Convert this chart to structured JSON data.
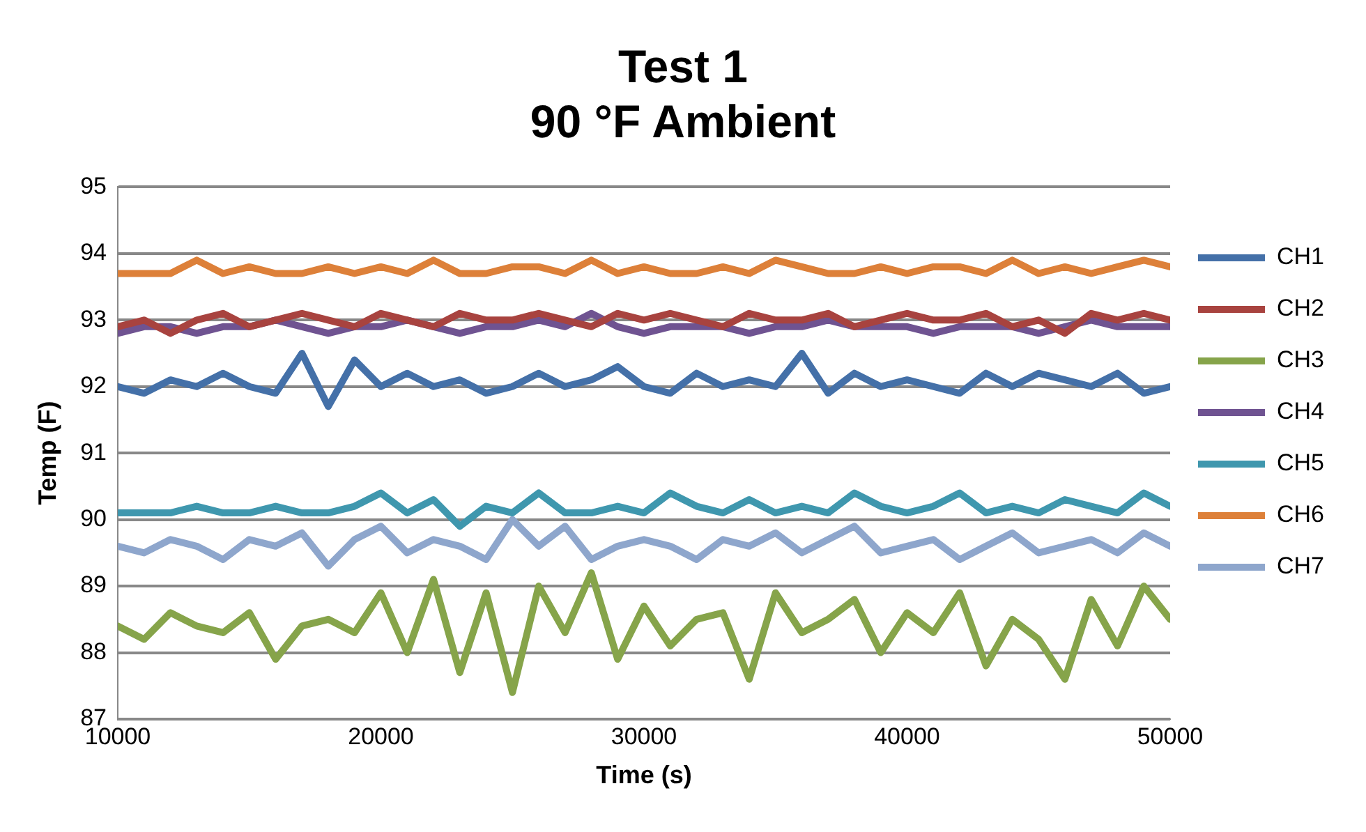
{
  "chart_data": {
    "type": "line",
    "title": "Test 1\n90 °F Ambient",
    "xlabel": "Time (s)",
    "ylabel": "Temp (F)",
    "x": [
      10000,
      11000,
      12000,
      13000,
      14000,
      15000,
      16000,
      17000,
      18000,
      19000,
      20000,
      21000,
      22000,
      23000,
      24000,
      25000,
      26000,
      27000,
      28000,
      29000,
      30000,
      31000,
      32000,
      33000,
      34000,
      35000,
      36000,
      37000,
      38000,
      39000,
      40000,
      41000,
      42000,
      43000,
      44000,
      45000,
      46000,
      47000,
      48000,
      49000,
      50000
    ],
    "series": [
      {
        "name": "CH1",
        "color": "#4470a8",
        "values": [
          92.0,
          91.9,
          92.1,
          92.0,
          92.2,
          92.0,
          91.9,
          92.5,
          91.7,
          92.4,
          92.0,
          92.2,
          92.0,
          92.1,
          91.9,
          92.0,
          92.2,
          92.0,
          92.1,
          92.3,
          92.0,
          91.9,
          92.2,
          92.0,
          92.1,
          92.0,
          92.5,
          91.9,
          92.2,
          92.0,
          92.1,
          92.0,
          91.9,
          92.2,
          92.0,
          92.2,
          92.1,
          92.0,
          92.2,
          91.9,
          92.0
        ]
      },
      {
        "name": "CH2",
        "color": "#a8433f",
        "values": [
          92.9,
          93.0,
          92.8,
          93.0,
          93.1,
          92.9,
          93.0,
          93.1,
          93.0,
          92.9,
          93.1,
          93.0,
          92.9,
          93.1,
          93.0,
          93.0,
          93.1,
          93.0,
          92.9,
          93.1,
          93.0,
          93.1,
          93.0,
          92.9,
          93.1,
          93.0,
          93.0,
          93.1,
          92.9,
          93.0,
          93.1,
          93.0,
          93.0,
          93.1,
          92.9,
          93.0,
          92.8,
          93.1,
          93.0,
          93.1,
          93.0
        ]
      },
      {
        "name": "CH3",
        "color": "#86a44a",
        "values": [
          88.4,
          88.2,
          88.6,
          88.4,
          88.3,
          88.6,
          87.9,
          88.4,
          88.5,
          88.3,
          88.9,
          88.0,
          89.1,
          87.7,
          88.9,
          87.4,
          89.0,
          88.3,
          89.2,
          87.9,
          88.7,
          88.1,
          88.5,
          88.6,
          87.6,
          88.9,
          88.3,
          88.5,
          88.8,
          88.0,
          88.6,
          88.3,
          88.9,
          87.8,
          88.5,
          88.2,
          87.6,
          88.8,
          88.1,
          89.0,
          88.5
        ]
      },
      {
        "name": "CH4",
        "color": "#6f5391",
        "values": [
          92.8,
          92.9,
          92.9,
          92.8,
          92.9,
          92.9,
          93.0,
          92.9,
          92.8,
          92.9,
          92.9,
          93.0,
          92.9,
          92.8,
          92.9,
          92.9,
          93.0,
          92.9,
          93.1,
          92.9,
          92.8,
          92.9,
          92.9,
          92.9,
          92.8,
          92.9,
          92.9,
          93.0,
          92.9,
          92.9,
          92.9,
          92.8,
          92.9,
          92.9,
          92.9,
          92.8,
          92.9,
          93.0,
          92.9,
          92.9,
          92.9
        ]
      },
      {
        "name": "CH5",
        "color": "#3f97ae",
        "values": [
          90.1,
          90.1,
          90.1,
          90.2,
          90.1,
          90.1,
          90.2,
          90.1,
          90.1,
          90.2,
          90.4,
          90.1,
          90.3,
          89.9,
          90.2,
          90.1,
          90.4,
          90.1,
          90.1,
          90.2,
          90.1,
          90.4,
          90.2,
          90.1,
          90.3,
          90.1,
          90.2,
          90.1,
          90.4,
          90.2,
          90.1,
          90.2,
          90.4,
          90.1,
          90.2,
          90.1,
          90.3,
          90.2,
          90.1,
          90.4,
          90.2
        ]
      },
      {
        "name": "CH6",
        "color": "#dd8039",
        "values": [
          93.7,
          93.7,
          93.7,
          93.9,
          93.7,
          93.8,
          93.7,
          93.7,
          93.8,
          93.7,
          93.8,
          93.7,
          93.9,
          93.7,
          93.7,
          93.8,
          93.8,
          93.7,
          93.9,
          93.7,
          93.8,
          93.7,
          93.7,
          93.8,
          93.7,
          93.9,
          93.8,
          93.7,
          93.7,
          93.8,
          93.7,
          93.8,
          93.8,
          93.7,
          93.9,
          93.7,
          93.8,
          93.7,
          93.8,
          93.9,
          93.8
        ]
      },
      {
        "name": "CH7",
        "color": "#8ea6cc",
        "values": [
          89.6,
          89.5,
          89.7,
          89.6,
          89.4,
          89.7,
          89.6,
          89.8,
          89.3,
          89.7,
          89.9,
          89.5,
          89.7,
          89.6,
          89.4,
          90.0,
          89.6,
          89.9,
          89.4,
          89.6,
          89.7,
          89.6,
          89.4,
          89.7,
          89.6,
          89.8,
          89.5,
          89.7,
          89.9,
          89.5,
          89.6,
          89.7,
          89.4,
          89.6,
          89.8,
          89.5,
          89.6,
          89.7,
          89.5,
          89.8,
          89.6
        ]
      }
    ],
    "xlim": [
      10000,
      50000
    ],
    "xticks": [
      10000,
      20000,
      30000,
      40000,
      50000
    ],
    "ylim": [
      87,
      95
    ],
    "yticks": [
      87,
      88,
      89,
      90,
      91,
      92,
      93,
      94,
      95
    ],
    "grid": "y",
    "legend": "right",
    "marker": "none",
    "line_style": "solid"
  }
}
